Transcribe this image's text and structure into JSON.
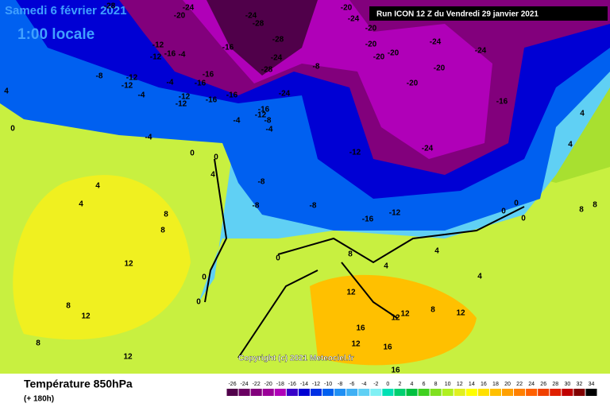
{
  "header": {
    "date": "Samedi 6 février 2021",
    "time": "1:00 locale",
    "run": "Run ICON 12 Z du Vendredi 29 janvier 2021",
    "copyright": "Copyright (c) 2021 Meteociel.fr"
  },
  "footer": {
    "title": "Température 850hPa",
    "lead": "(+ 180h)"
  },
  "legend": {
    "ticks": [
      -26,
      -24,
      -22,
      -20,
      -18,
      -16,
      -14,
      -12,
      -10,
      -8,
      -6,
      -4,
      -2,
      0,
      2,
      4,
      6,
      8,
      10,
      12,
      14,
      16,
      18,
      20,
      22,
      24,
      26,
      28,
      30,
      32,
      34
    ],
    "colors": [
      "#50004a",
      "#6a0062",
      "#82007c",
      "#9a0098",
      "#b000b8",
      "#3800c8",
      "#0000d4",
      "#0030e4",
      "#0060f0",
      "#2090f4",
      "#40b0f4",
      "#60d0f4",
      "#80f0f4",
      "#00e0b4",
      "#00d070",
      "#00c040",
      "#40d020",
      "#80e020",
      "#b0f020",
      "#e0f020",
      "#ffff00",
      "#ffe000",
      "#ffc000",
      "#ffa000",
      "#ff8000",
      "#ff6000",
      "#f04000",
      "#e02000",
      "#c00000",
      "#800000",
      "#000000"
    ]
  },
  "map": {
    "contour_labels": [
      -28,
      -24,
      -20,
      -24,
      -28,
      -20,
      -24,
      -28,
      -24,
      -28,
      -24,
      -16,
      -16,
      -16,
      -16,
      -12,
      -12,
      -16,
      -4,
      -12,
      -8,
      -12,
      -4,
      -16,
      -4,
      -12,
      -12,
      -8,
      -16,
      -12,
      -8,
      -4,
      -4,
      -4,
      0,
      0,
      0,
      -8,
      -8,
      -8,
      -12,
      -12,
      -24,
      -20,
      -20,
      -24,
      -24,
      -20,
      -20,
      -20,
      -16,
      -20,
      -16,
      4,
      4,
      4,
      4,
      0,
      0,
      0,
      4,
      4,
      8,
      8,
      12,
      8,
      8,
      12,
      16,
      12,
      16,
      12,
      12,
      8,
      0,
      0,
      0,
      4,
      4,
      4,
      8,
      12,
      12,
      16,
      8,
      8,
      12
    ]
  }
}
